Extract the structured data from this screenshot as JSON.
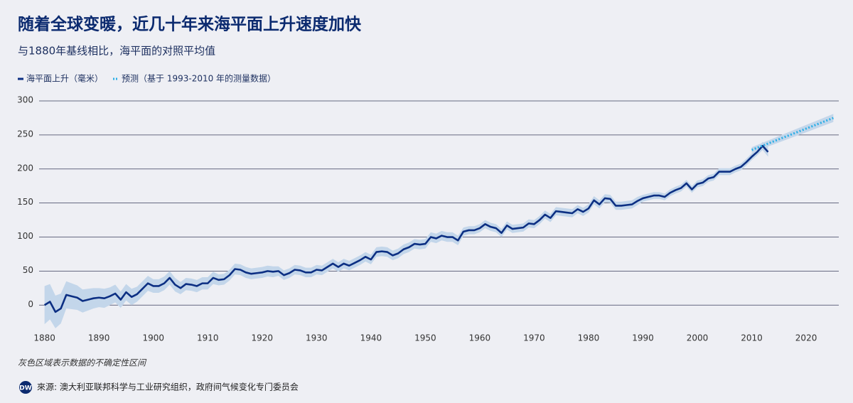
{
  "chart_data": {
    "type": "line",
    "title": "随着全球变暖，近几十年来海平面上升速度加快",
    "subtitle": "与1880年基线相比，海平面的对照平均值",
    "note": "灰色区域表示数据的不确定性区间",
    "source": "來源: 澳大利亚联邦科学与工业研究组织，政府间气候变化专门委员会",
    "band_color": "#c3d6ea",
    "xlim": [
      1879,
      2026
    ],
    "xticks": [
      1880,
      1890,
      1900,
      1910,
      1920,
      1930,
      1940,
      1950,
      1960,
      1970,
      1980,
      1990,
      2000,
      2010,
      2020
    ],
    "ylim": [
      -30,
      300
    ],
    "yticks": [
      0,
      50,
      100,
      150,
      200,
      250,
      300
    ],
    "grid": true,
    "series": [
      {
        "name": "海平面上升（毫米）",
        "color": "#0c2f83",
        "style": "solid",
        "x": [
          1880,
          1881,
          1882,
          1883,
          1884,
          1885,
          1886,
          1887,
          1888,
          1889,
          1890,
          1891,
          1892,
          1893,
          1894,
          1895,
          1896,
          1897,
          1898,
          1899,
          1900,
          1901,
          1902,
          1903,
          1904,
          1905,
          1906,
          1907,
          1908,
          1909,
          1910,
          1911,
          1912,
          1913,
          1914,
          1915,
          1916,
          1917,
          1918,
          1919,
          1920,
          1921,
          1922,
          1923,
          1924,
          1925,
          1926,
          1927,
          1928,
          1929,
          1930,
          1931,
          1932,
          1933,
          1934,
          1935,
          1936,
          1937,
          1938,
          1939,
          1940,
          1941,
          1942,
          1943,
          1944,
          1945,
          1946,
          1947,
          1948,
          1949,
          1950,
          1951,
          1952,
          1953,
          1954,
          1955,
          1956,
          1957,
          1958,
          1959,
          1960,
          1961,
          1962,
          1963,
          1964,
          1965,
          1966,
          1967,
          1968,
          1969,
          1970,
          1971,
          1972,
          1973,
          1974,
          1975,
          1976,
          1977,
          1978,
          1979,
          1980,
          1981,
          1982,
          1983,
          1984,
          1985,
          1986,
          1987,
          1988,
          1989,
          1990,
          1991,
          1992,
          1993,
          1994,
          1995,
          1996,
          1997,
          1998,
          1999,
          2000,
          2001,
          2002,
          2003,
          2004,
          2005,
          2006,
          2007,
          2008,
          2009,
          2010,
          2011,
          2012,
          2013
        ],
        "values": [
          0,
          5,
          -10,
          -5,
          15,
          13,
          11,
          6,
          8,
          10,
          11,
          10,
          13,
          17,
          8,
          19,
          12,
          16,
          24,
          32,
          28,
          28,
          32,
          40,
          30,
          25,
          31,
          30,
          28,
          32,
          32,
          40,
          37,
          38,
          44,
          53,
          52,
          48,
          46,
          47,
          48,
          50,
          49,
          50,
          44,
          47,
          52,
          51,
          48,
          48,
          52,
          51,
          56,
          61,
          56,
          61,
          58,
          62,
          66,
          71,
          67,
          78,
          79,
          78,
          73,
          76,
          82,
          85,
          90,
          89,
          90,
          100,
          98,
          102,
          100,
          100,
          95,
          108,
          110,
          110,
          113,
          119,
          115,
          113,
          106,
          117,
          112,
          113,
          114,
          120,
          119,
          125,
          133,
          128,
          138,
          137,
          136,
          135,
          141,
          137,
          142,
          154,
          148,
          157,
          156,
          146,
          146,
          147,
          148,
          153,
          157,
          159,
          161,
          161,
          159,
          165,
          169,
          172,
          179,
          170,
          178,
          180,
          186,
          188,
          196,
          196,
          196,
          200,
          203,
          210,
          218,
          225,
          234,
          225
        ],
        "errors": [
          28,
          26,
          24,
          22,
          20,
          19,
          18,
          17,
          16,
          15,
          14,
          14,
          13,
          13,
          12,
          12,
          12,
          11,
          11,
          11,
          10,
          10,
          10,
          10,
          10,
          9,
          9,
          9,
          9,
          9,
          9,
          9,
          8,
          8,
          8,
          8,
          8,
          8,
          8,
          8,
          8,
          8,
          8,
          7,
          7,
          7,
          7,
          7,
          7,
          7,
          7,
          7,
          7,
          7,
          7,
          7,
          7,
          7,
          7,
          7,
          7,
          7,
          7,
          7,
          7,
          7,
          7,
          7,
          7,
          7,
          7,
          7,
          7,
          7,
          7,
          7,
          7,
          6,
          6,
          6,
          6,
          6,
          6,
          6,
          6,
          6,
          6,
          6,
          6,
          6,
          6,
          6,
          6,
          6,
          6,
          6,
          6,
          6,
          6,
          6,
          6,
          6,
          6,
          6,
          6,
          6,
          6,
          6,
          6,
          6,
          5,
          5,
          5,
          5,
          5,
          5,
          5,
          5,
          5,
          5,
          5,
          5,
          5,
          5,
          5,
          5,
          5,
          5,
          5,
          5,
          5,
          5,
          6,
          7
        ]
      },
      {
        "name": "预测（基于 1993-2010 年的测量数据）",
        "color": "#2aaee6",
        "style": "dotted",
        "x": [
          2010,
          2025
        ],
        "values": [
          228,
          275
        ],
        "errors": [
          4,
          6
        ]
      }
    ]
  }
}
